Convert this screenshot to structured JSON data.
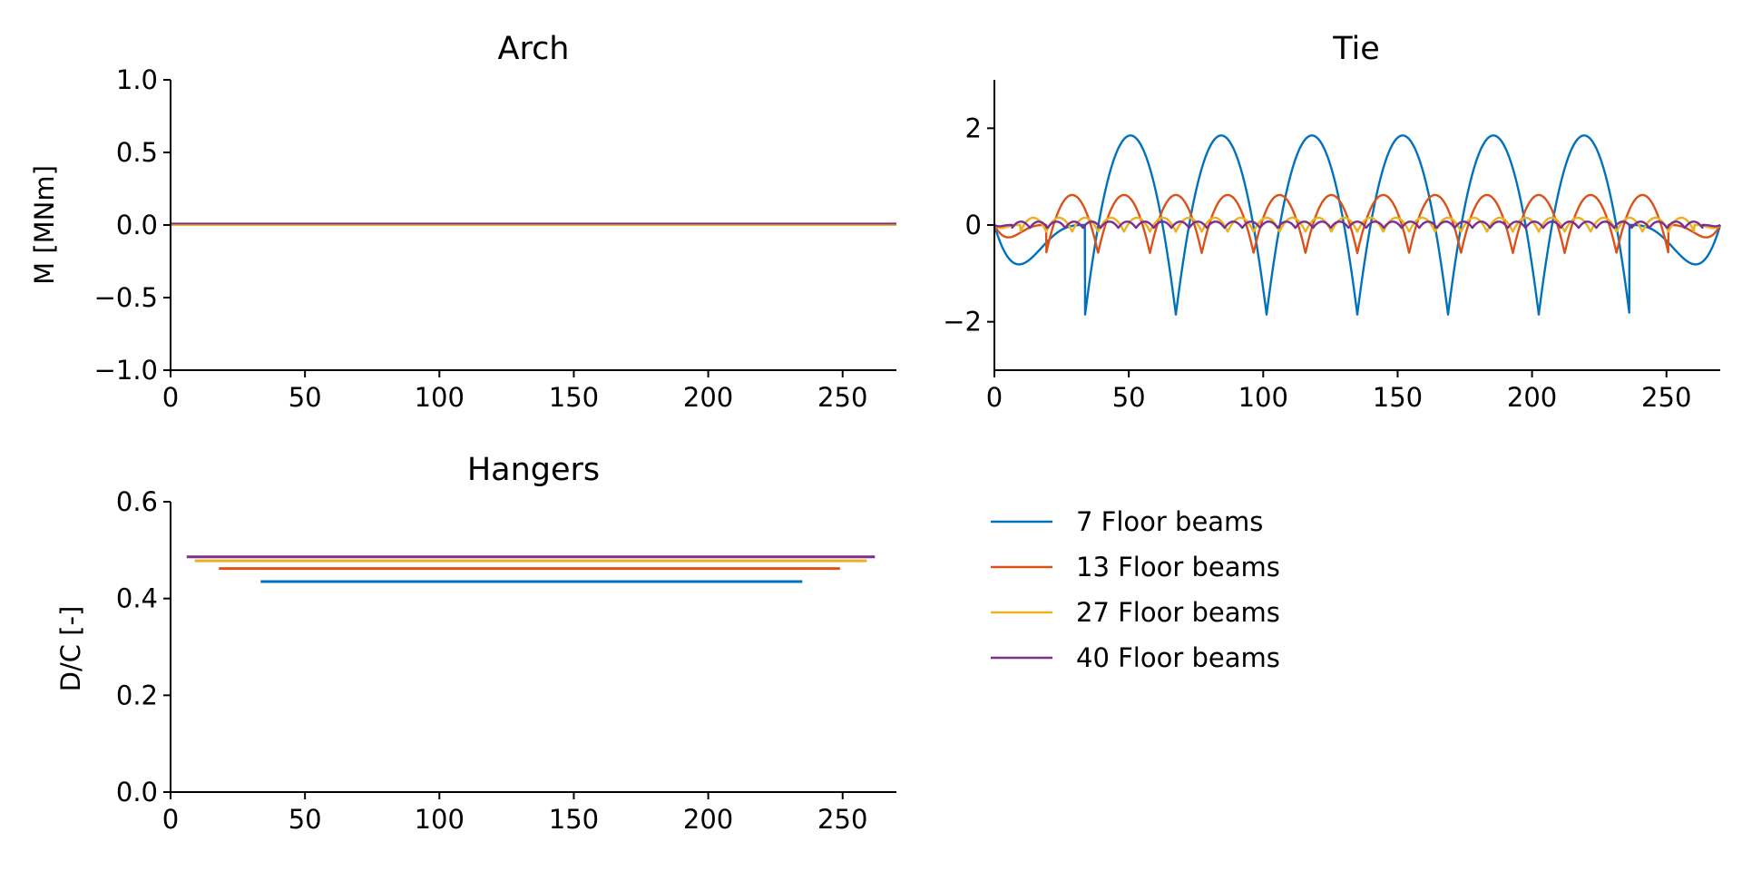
{
  "chart_data": [
    {
      "type": "line",
      "title": "Arch",
      "xlabel": "",
      "ylabel": "M [MNm]",
      "xlim": [
        0,
        270
      ],
      "ylim": [
        -1.0,
        1.0
      ],
      "xticks": [
        "0",
        "50",
        "100",
        "150",
        "200",
        "250"
      ],
      "yticks": [
        "1.0",
        "0.5",
        "0.0",
        "−0.5",
        "−1.0"
      ],
      "x": [
        0,
        270
      ],
      "series": [
        {
          "name": "7 Floor beams",
          "values": [
            0.0,
            0.0
          ]
        },
        {
          "name": "13 Floor beams",
          "values": [
            0.0,
            0.0
          ]
        },
        {
          "name": "27 Floor beams",
          "values": [
            0.0,
            0.0
          ]
        },
        {
          "name": "40 Floor beams",
          "values": [
            0.01,
            0.01
          ]
        }
      ],
      "grid": false
    },
    {
      "type": "line",
      "title": "Tie",
      "xlabel": "",
      "ylabel": "",
      "xlim": [
        0,
        270
      ],
      "ylim": [
        -3,
        3
      ],
      "xticks": [
        "0",
        "50",
        "100",
        "150",
        "200",
        "250"
      ],
      "yticks": [
        "2",
        "0",
        "−2"
      ],
      "series": [
        {
          "name": "7 Floor beams",
          "n_floor_beams": 7,
          "peak": 1.85,
          "trough": -1.85
        },
        {
          "name": "13 Floor beams",
          "n_floor_beams": 13,
          "peak": 0.62,
          "trough": -0.58
        },
        {
          "name": "27 Floor beams",
          "n_floor_beams": 27,
          "peak": 0.15,
          "trough": -0.14
        },
        {
          "name": "40 Floor beams",
          "n_floor_beams": 40,
          "peak": 0.07,
          "trough": -0.06
        }
      ],
      "grid": false
    },
    {
      "type": "line",
      "title": "Hangers",
      "xlabel": "",
      "ylabel": "D/C [-]",
      "xlim": [
        0,
        270
      ],
      "ylim": [
        0.0,
        0.6
      ],
      "xticks": [
        "0",
        "50",
        "100",
        "150",
        "200",
        "250"
      ],
      "yticks": [
        "0.6",
        "0.4",
        "0.2",
        "0.0"
      ],
      "series": [
        {
          "name": "7 Floor beams",
          "x": [
            33.5,
            235
          ],
          "values": [
            0.435,
            0.435
          ]
        },
        {
          "name": "13 Floor beams",
          "x": [
            18,
            249
          ],
          "values": [
            0.462,
            0.462
          ]
        },
        {
          "name": "27 Floor beams",
          "x": [
            9,
            259
          ],
          "values": [
            0.478,
            0.478
          ]
        },
        {
          "name": "40 Floor beams",
          "x": [
            6,
            262
          ],
          "values": [
            0.486,
            0.486
          ]
        }
      ],
      "grid": false
    }
  ],
  "legend": {
    "placement": "lower-right",
    "entries": [
      "7 Floor beams",
      "13 Floor beams",
      "27 Floor beams",
      "40 Floor beams"
    ]
  },
  "colors": {
    "7 Floor beams": "#0072BD",
    "13 Floor beams": "#D95319",
    "27 Floor beams": "#EDB120",
    "40 Floor beams": "#7E2F8E",
    "axis": "#000000"
  }
}
